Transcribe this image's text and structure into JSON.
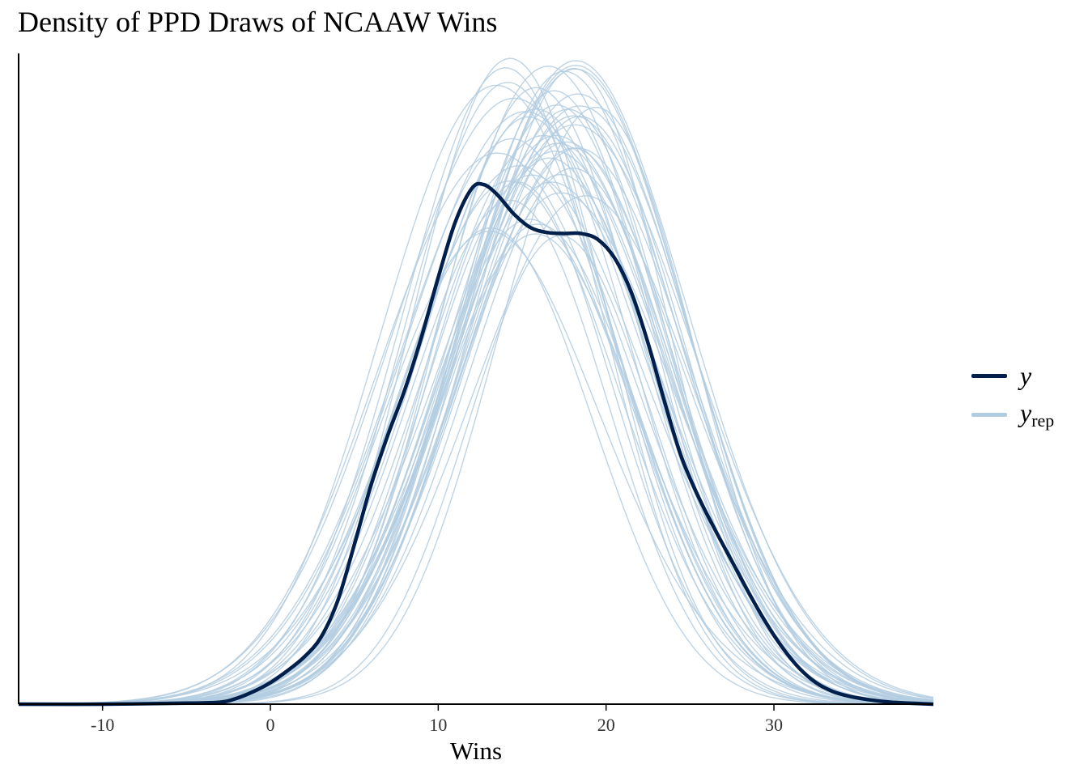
{
  "chart_data": {
    "type": "line",
    "title": "Density of PPD Draws of NCAAW Wins",
    "xlabel": "Wins",
    "ylabel": "",
    "xlim": [
      -15,
      39.5
    ],
    "xticks": [
      -10,
      0,
      10,
      20,
      30
    ],
    "xtick_labels": [
      "-10",
      "0",
      "10",
      "20",
      "30"
    ],
    "ylim": [
      0,
      0.0665
    ],
    "y_axis_ticks_shown": false,
    "grid": false,
    "legend_position": "right",
    "legend": [
      {
        "key": "y",
        "label": "y",
        "color": "#011f4b"
      },
      {
        "key": "yrep",
        "label": "y",
        "subscript": "rep",
        "color": "#b3cde0"
      }
    ],
    "colors": {
      "y": "#011f4b",
      "yrep": "#b3cde0"
    },
    "series_y": {
      "name": "y",
      "x": [
        -15,
        -10,
        -5,
        -3,
        -2,
        -1,
        0,
        1,
        2,
        3,
        4,
        5,
        6,
        7,
        8,
        9,
        10,
        11,
        12,
        12.7,
        13.5,
        14.5,
        15.5,
        16.5,
        17.5,
        18.5,
        19.5,
        20.5,
        21.5,
        22.5,
        23.5,
        24.5,
        25.5,
        26.5,
        27.5,
        28.5,
        29.5,
        30.5,
        31.5,
        32.5,
        33.5,
        34.5,
        35.5,
        37,
        39.5
      ],
      "y": [
        0,
        0,
        0.0001,
        0.0002,
        0.0006,
        0.0013,
        0.0022,
        0.0034,
        0.0048,
        0.0068,
        0.0105,
        0.0163,
        0.0224,
        0.0275,
        0.0321,
        0.0375,
        0.0436,
        0.0492,
        0.0527,
        0.0531,
        0.0521,
        0.0501,
        0.0487,
        0.0482,
        0.0481,
        0.0481,
        0.0475,
        0.0456,
        0.0421,
        0.0369,
        0.0308,
        0.0252,
        0.0212,
        0.0178,
        0.0146,
        0.0114,
        0.0084,
        0.0058,
        0.0037,
        0.0022,
        0.0013,
        0.0008,
        0.0005,
        0.0002,
        0
      ]
    },
    "series_yrep": {
      "name": "y_rep",
      "draws": 50,
      "shape": "normal-like densities",
      "mean_range": [
        14,
        19
      ],
      "sd_range": [
        6.2,
        8.0
      ],
      "y_peak_max": 0.0665
    }
  }
}
